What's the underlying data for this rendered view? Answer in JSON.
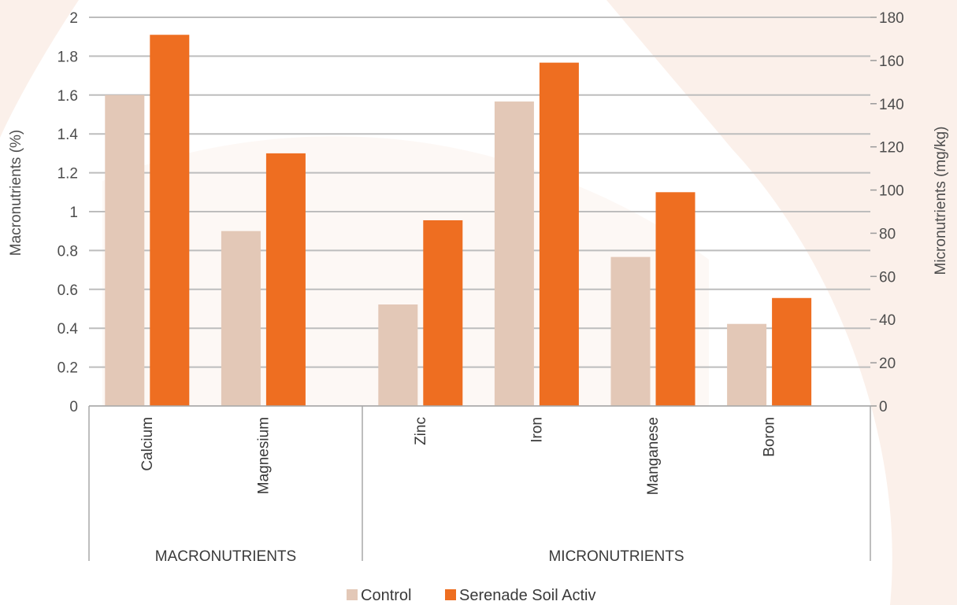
{
  "chart_data": {
    "type": "bar",
    "xlabel": "",
    "left_axis": {
      "label": "Macronutrients (%)",
      "ylim": [
        0,
        2
      ],
      "ticks": [
        "0",
        "0.2",
        "0.4",
        "0.6",
        "0.8",
        "1",
        "1.2",
        "1.4",
        "1.6",
        "1.8",
        "2"
      ]
    },
    "right_axis": {
      "label": "Micronutrients (mg/kg)",
      "ylim": [
        0,
        180
      ],
      "ticks": [
        "0",
        "20",
        "40",
        "60",
        "80",
        "100",
        "120",
        "140",
        "160",
        "180"
      ]
    },
    "groups": [
      {
        "label": "MACRONUTRIENTS",
        "axis": "left",
        "categories": [
          "Calcium",
          "Magnesium"
        ],
        "series": [
          {
            "name": "Control",
            "values": [
              1.6,
              0.9
            ]
          },
          {
            "name": "Serenade Soil Activ",
            "values": [
              1.91,
              1.3
            ]
          }
        ]
      },
      {
        "label": "MICRONUTRIENTS",
        "axis": "right",
        "categories": [
          "Zinc",
          "Iron",
          "Manganese",
          "Boron"
        ],
        "series": [
          {
            "name": "Control",
            "values": [
              47,
              141,
              69,
              38
            ]
          },
          {
            "name": "Serenade Soil Activ",
            "values": [
              86,
              159,
              99,
              50
            ]
          }
        ]
      }
    ],
    "legend": {
      "position": "bottom-center",
      "entries": [
        {
          "name": "Control",
          "color": "#e3c8b7"
        },
        {
          "name": "Serenade Soil Activ",
          "color": "#ee6e21"
        }
      ]
    },
    "grid": true,
    "colors": {
      "control": "#e3c8b7",
      "treated": "#ee6e21",
      "gridline": "#bdbdbd",
      "background_shape": "#fbf0ea"
    }
  }
}
